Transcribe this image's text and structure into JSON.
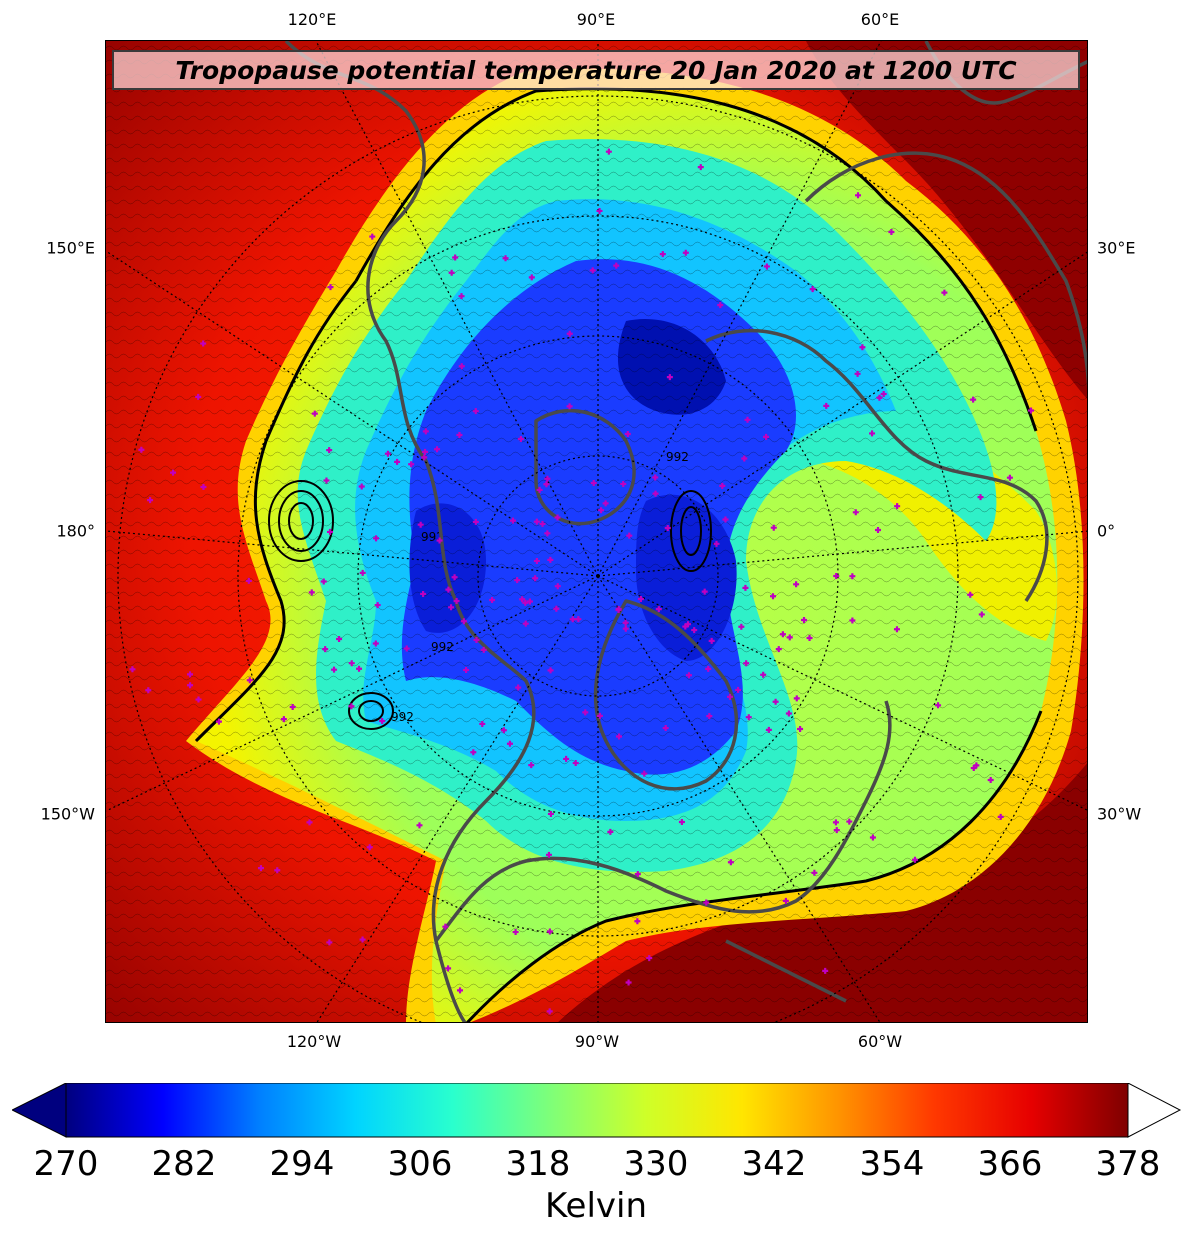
{
  "title": "Tropopause potential temperature 20 Jan 2020 at 1200 UTC",
  "colors": {
    "frame": "#000000",
    "coastline": "#4a4a4a",
    "station_marker": "#c000c0",
    "contour": "#000000"
  },
  "icons": {
    "station_marker": "plus-marker",
    "colorbar_extend_min": "triangle-left",
    "colorbar_extend_max": "triangle-right"
  },
  "map": {
    "projection": "north-polar-stereographic",
    "center_longitude": "90°W",
    "lon_labels_top": [
      "120°E",
      "90°E",
      "60°E"
    ],
    "lon_labels_bottom": [
      "120°W",
      "90°W",
      "60°W"
    ],
    "lon_labels_left": [
      "150°E",
      "180°",
      "150°W"
    ],
    "lon_labels_right": [
      "30°E",
      "0°",
      "30°W"
    ],
    "contour_values_shown": [
      "992",
      "992",
      "992",
      "992"
    ]
  },
  "colorbar": {
    "label": "Kelvin",
    "min": 270,
    "max": 378,
    "ticks": [
      "270",
      "282",
      "294",
      "306",
      "318",
      "330",
      "342",
      "354",
      "366",
      "378"
    ],
    "extend": "both",
    "colormap": [
      "#00007f",
      "#0000ff",
      "#007fff",
      "#00d4ff",
      "#29ffce",
      "#7dff7a",
      "#ceff29",
      "#ffe600",
      "#ff9400",
      "#ff3800",
      "#e60000",
      "#7f0000"
    ]
  }
}
